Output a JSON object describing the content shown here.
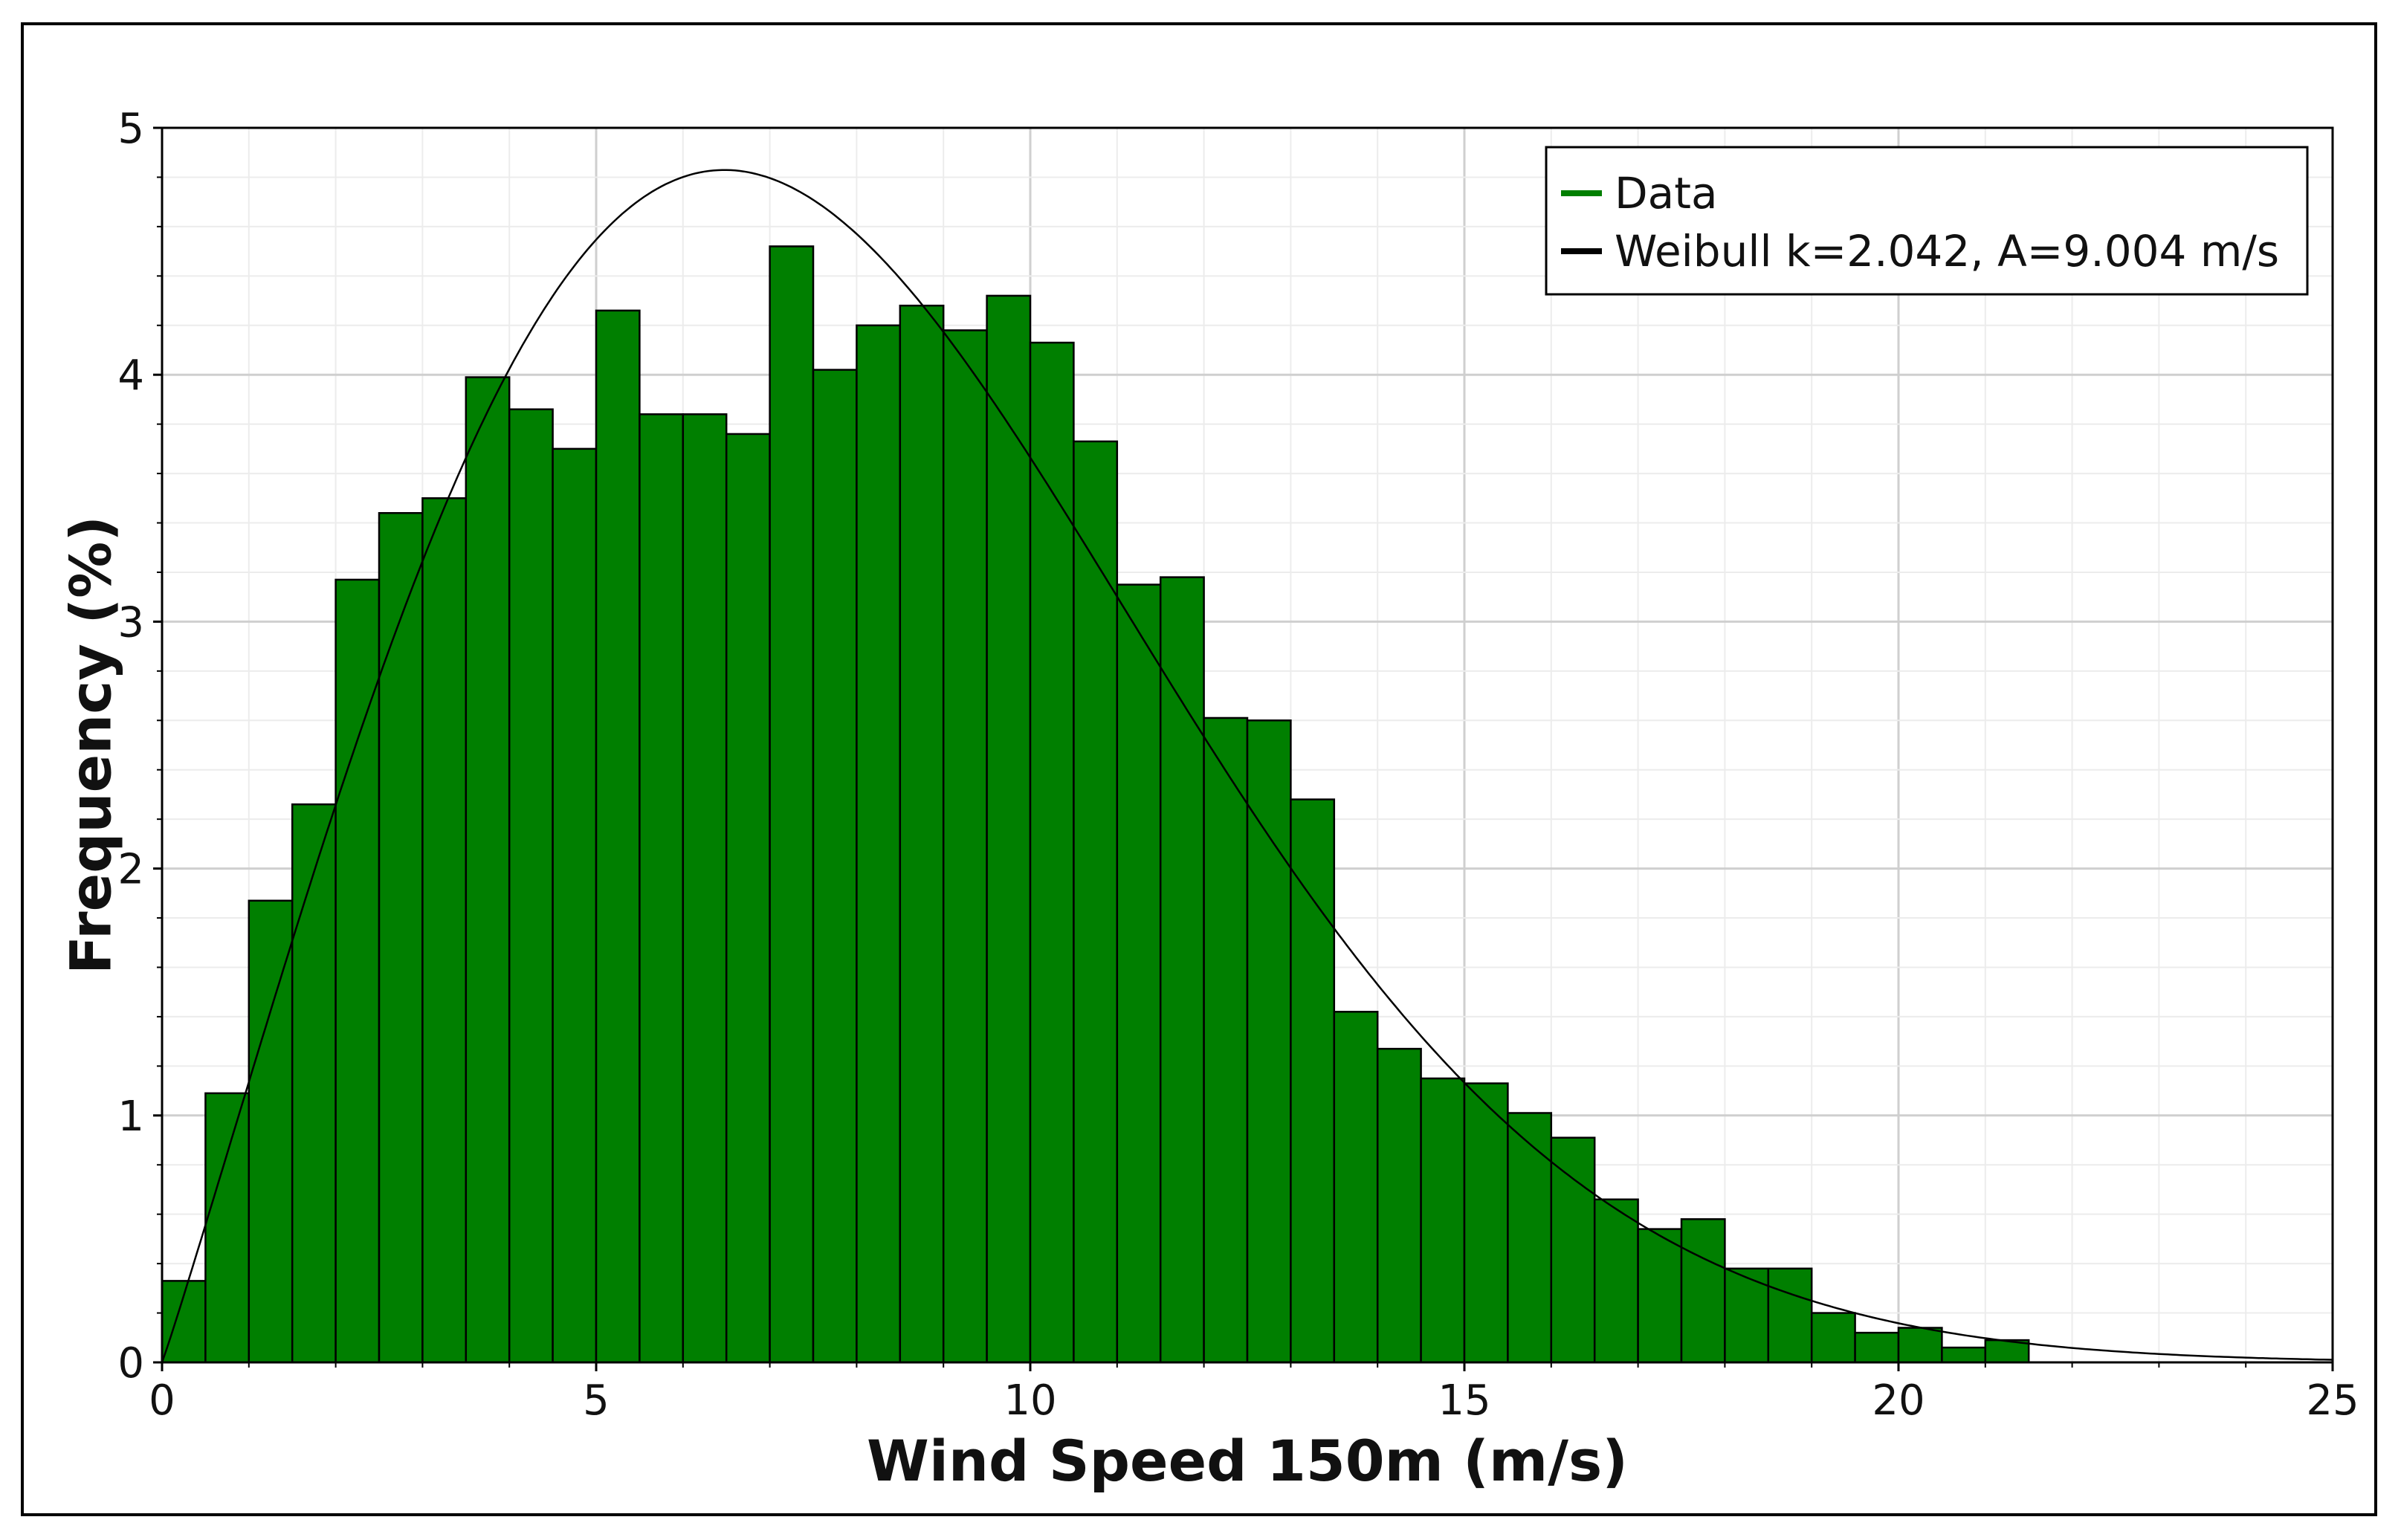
{
  "chart_data": {
    "type": "bar",
    "xlabel": "Wind Speed 150m (m/s)",
    "ylabel": "Frequency (%)",
    "xlim": [
      0,
      25
    ],
    "ylim": [
      0,
      5
    ],
    "xticks": [
      "0",
      "5",
      "10",
      "15",
      "20",
      "25"
    ],
    "yticks": [
      "0",
      "1",
      "2",
      "3",
      "4",
      "5"
    ],
    "grid": true,
    "legend_position": "top-right",
    "bin_width": 0.5,
    "series": [
      {
        "name": "Data",
        "kind": "histogram",
        "color": "#007F00",
        "x": [
          0,
          0.5,
          1,
          1.5,
          2,
          2.5,
          3,
          3.5,
          4,
          4.5,
          5,
          5.5,
          6,
          6.5,
          7,
          7.5,
          8,
          8.5,
          9,
          9.5,
          10,
          10.5,
          11,
          11.5,
          12,
          12.5,
          13,
          13.5,
          14,
          14.5,
          15,
          15.5,
          16,
          16.5,
          17,
          17.5,
          18,
          18.5,
          19,
          19.5,
          20,
          20.5,
          21
        ],
        "values": [
          0.33,
          1.09,
          1.87,
          2.26,
          3.17,
          3.44,
          3.5,
          3.99,
          3.86,
          3.7,
          4.26,
          3.84,
          3.84,
          3.76,
          4.52,
          4.02,
          4.2,
          4.28,
          4.18,
          4.32,
          4.13,
          3.73,
          3.15,
          3.18,
          2.61,
          2.6,
          2.28,
          1.42,
          1.27,
          1.15,
          1.13,
          1.01,
          0.91,
          0.66,
          0.54,
          0.58,
          0.38,
          0.38,
          0.2,
          0.12,
          0.14,
          0.06,
          0.09
        ]
      },
      {
        "name": "Weibull k=2.042, A=9.004 m/s",
        "kind": "line",
        "color": "#000000",
        "k": 2.042,
        "A": 9.004
      }
    ]
  }
}
